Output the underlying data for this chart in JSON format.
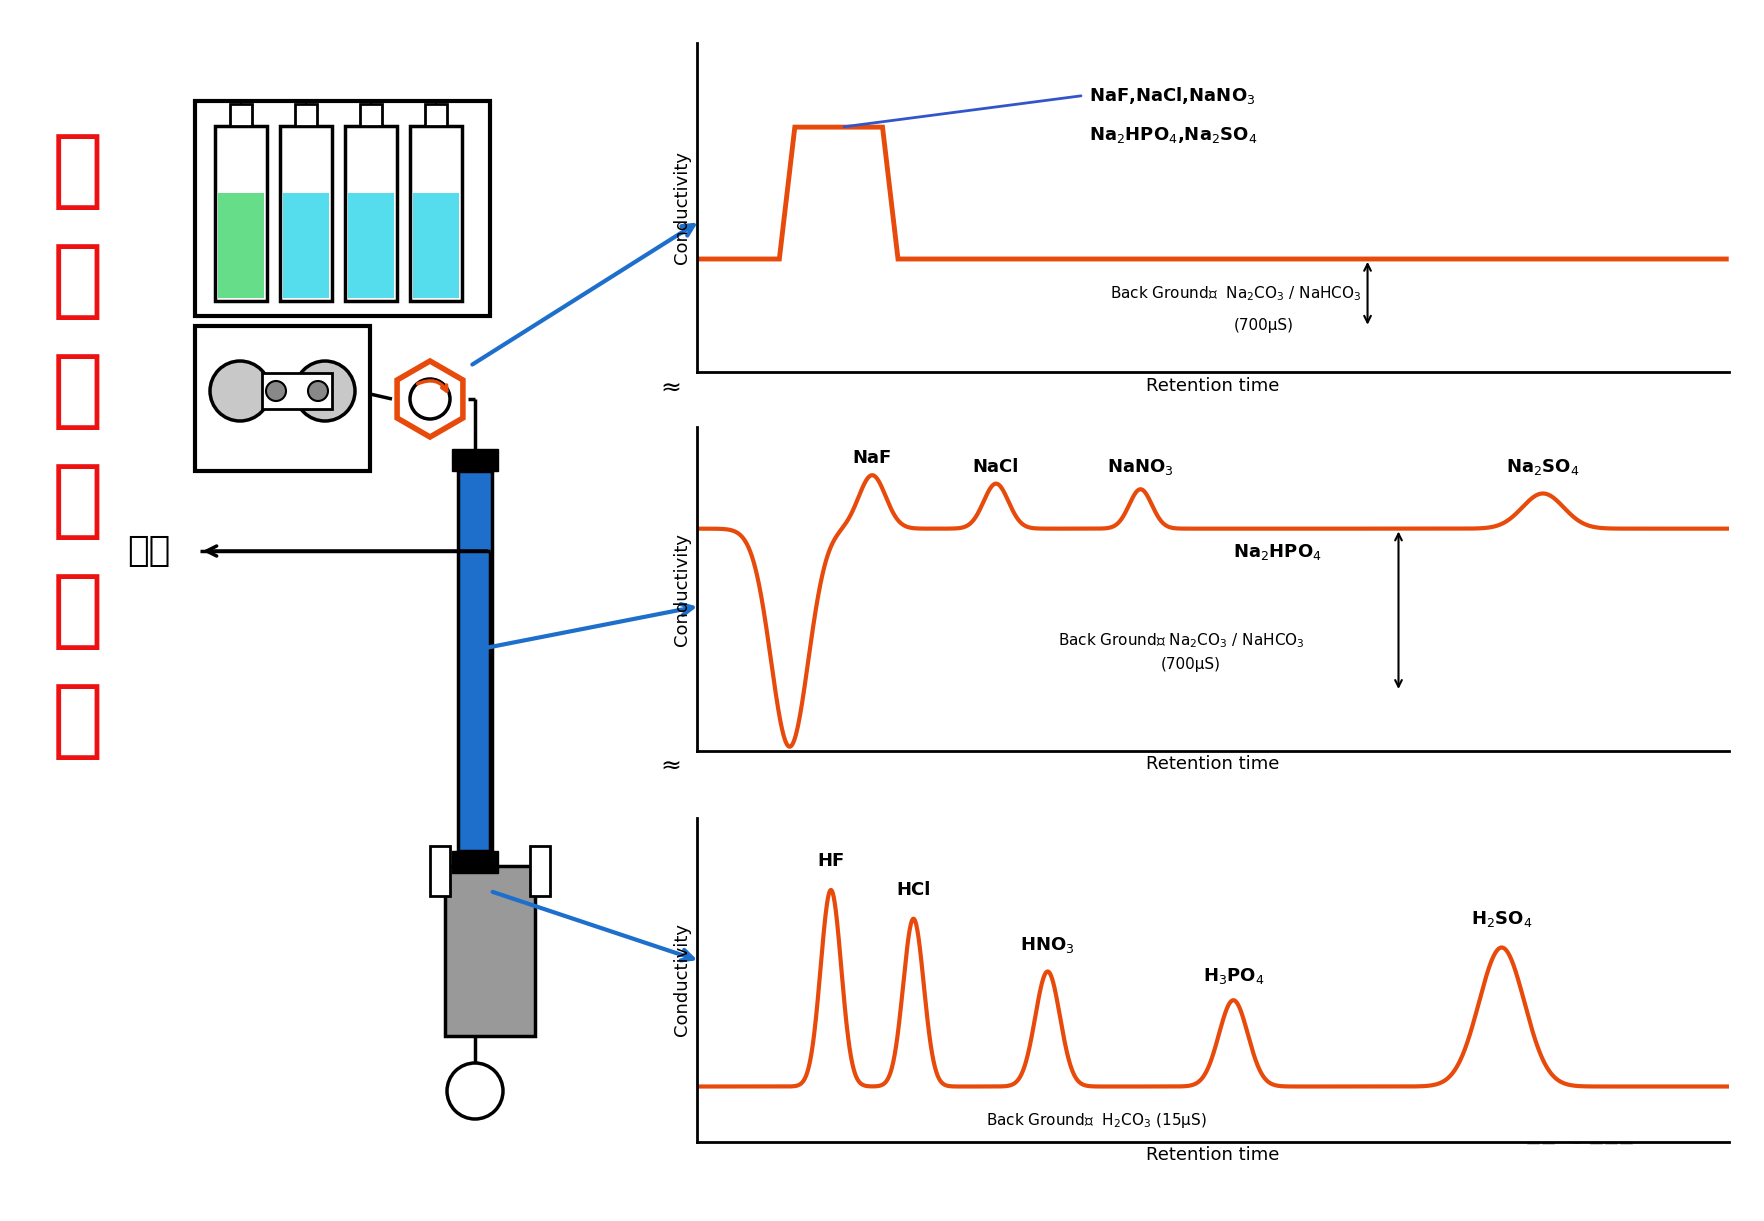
{
  "bg_color": "#ffffff",
  "title_text": "抑制器的作用",
  "title_color": "#ee1111",
  "waste_label": "废液",
  "watermark": "知乎 @色谱云",
  "orange": "#e84a0c",
  "blue": "#1e6fcc",
  "black": "#000000",
  "gray_fill": "#999999",
  "green_fill": "#66dd88",
  "cyan_fill": "#55ddee",
  "graph1": {
    "ylabel": "Conductivity",
    "xlabel": "Retention time",
    "peak_label1": "NaF,NaCl,NaNO$_3$",
    "peak_label2": "Na$_2$HPO$_4$,Na$_2$SO$_4$",
    "bg_label1": "Back Ground：  Na$_2$CO$_3$ / NaHCO$_3$",
    "bg_label2": "(700μS)"
  },
  "graph2": {
    "ylabel": "Conductivity",
    "xlabel": "Retention time",
    "labels": [
      "NaF",
      "NaCl",
      "NaNO$_3$",
      "Na$_2$SO$_4$"
    ],
    "label_na2hpo4": "Na$_2$HPO$_4$",
    "bg_label1": "Back Ground： Na$_2$CO$_3$ / NaHCO$_3$",
    "bg_label2": "(700μS)"
  },
  "graph3": {
    "ylabel": "Conductivity",
    "xlabel": "Retention time",
    "labels": [
      "HF",
      "HCl",
      "HNO$_3$",
      "H$_3$PO$_4$",
      "H$_2$SO$_4$"
    ],
    "bg_label": "Back Ground：  H$_2$CO$_3$ (15μS)"
  }
}
